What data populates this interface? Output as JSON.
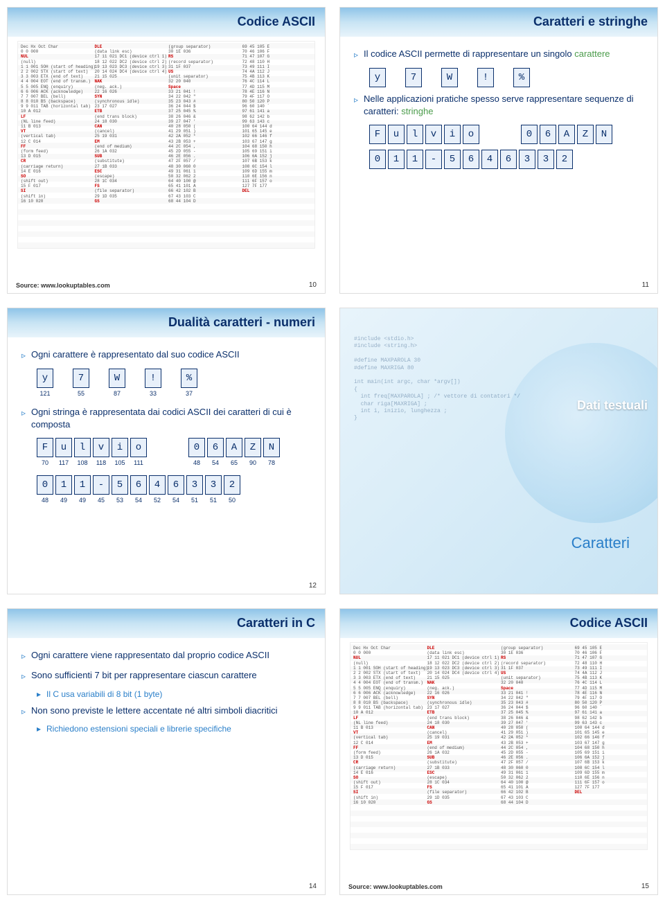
{
  "slides": {
    "s10": {
      "title": "Codice ASCII",
      "pagenum": "10",
      "source": "Source: www.lookuptables.com"
    },
    "s11": {
      "title": "Caratteri e stringhe",
      "pagenum": "11",
      "line1_pre": "Il codice ASCII permette di rappresentare un singolo ",
      "line1_green": "carattere",
      "row1": [
        "y",
        "7",
        "W",
        "!",
        "%"
      ],
      "line2_pre": "Nelle applicazioni pratiche spesso serve rappresentare sequenze di caratteri: ",
      "line2_green": "stringhe",
      "row2a": [
        "F",
        "u",
        "l",
        "v",
        "i",
        "o"
      ],
      "row2b": [
        "0",
        "6",
        "A",
        "Z",
        "N"
      ],
      "row3": [
        "0",
        "1",
        "1",
        "-",
        "5",
        "6",
        "4",
        "6",
        "3",
        "3",
        "2"
      ]
    },
    "s12": {
      "title": "Dualità caratteri - numeri",
      "pagenum": "12",
      "line1": "Ogni carattere è rappresentato dal suo codice ASCII",
      "row1": [
        {
          "c": "y",
          "n": "121"
        },
        {
          "c": "7",
          "n": "55"
        },
        {
          "c": "W",
          "n": "87"
        },
        {
          "c": "!",
          "n": "33"
        },
        {
          "c": "%",
          "n": "37"
        }
      ],
      "line2": "Ogni stringa è rappresentata dai codici ASCII dei caratteri di cui è composta",
      "row2a": [
        {
          "c": "F",
          "n": "70"
        },
        {
          "c": "u",
          "n": "117"
        },
        {
          "c": "l",
          "n": "108"
        },
        {
          "c": "v",
          "n": "118"
        },
        {
          "c": "i",
          "n": "105"
        },
        {
          "c": "o",
          "n": "111"
        }
      ],
      "row2b": [
        {
          "c": "0",
          "n": "48"
        },
        {
          "c": "6",
          "n": "54"
        },
        {
          "c": "A",
          "n": "65"
        },
        {
          "c": "Z",
          "n": "90"
        },
        {
          "c": "N",
          "n": "78"
        }
      ],
      "row3": [
        {
          "c": "0",
          "n": "48"
        },
        {
          "c": "1",
          "n": "49"
        },
        {
          "c": "1",
          "n": "49"
        },
        {
          "c": "-",
          "n": "45"
        },
        {
          "c": "5",
          "n": "53"
        },
        {
          "c": "6",
          "n": "54"
        },
        {
          "c": "4",
          "n": "52"
        },
        {
          "c": "6",
          "n": "54"
        },
        {
          "c": "3",
          "n": "51"
        },
        {
          "c": "3",
          "n": "51"
        },
        {
          "c": "2",
          "n": "50"
        }
      ]
    },
    "s13": {
      "title": "Dati testuali",
      "subtitle": "Caratteri"
    },
    "s14": {
      "title": "Caratteri in C",
      "pagenum": "14",
      "line1": "Ogni carattere viene rappresentato dal proprio codice ASCII",
      "line2": "Sono sufficienti 7 bit per rappresentare ciascun carattere",
      "sub1": "Il C usa variabili di 8 bit (1 byte)",
      "line3": "Non sono previste le lettere accentate né altri simboli diacritici",
      "sub2": "Richiedono estensioni speciali e librerie specifiche"
    },
    "s15": {
      "title": "Codice ASCII",
      "pagenum": "15",
      "source": "Source: www.lookuptables.com"
    }
  },
  "ascii_sample": [
    "Dec Hx Oct Char",
    "0  0 000 NUL (null)",
    "1  1 001 SOH (start of heading)",
    "2  2 002 STX (start of text)",
    "3  3 003 ETX (end of text)",
    "4  4 004 EOT (end of transm.)",
    "5  5 005 ENQ (enquiry)",
    "6  6 006 ACK (acknowledge)",
    "7  7 007 BEL (bell)",
    "8  8 010 BS  (backspace)",
    "9  9 011 TAB (horizontal tab)",
    "10 A 012 LF  (NL line feed)",
    "11 B 013 VT  (vertical tab)",
    "12 C 014 FF  (form feed)",
    "13 D 015 CR  (carriage return)",
    "14 E 016 SO  (shift out)",
    "15 F 017 SI  (shift in)",
    "16 10 020 DLE (data link esc)",
    "17 11 021 DC1 (device ctrl 1)",
    "18 12 022 DC2 (device ctrl 2)",
    "19 13 023 DC3 (device ctrl 3)",
    "20 14 024 DC4 (device ctrl 4)",
    "21 15 025 NAK (neg. ack.)",
    "22 16 026 SYN (synchronous idle)",
    "23 17 027 ETB (end trans block)",
    "24 18 030 CAN (cancel)",
    "25 19 031 EM  (end of medium)",
    "26 1A 032 SUB (substitute)",
    "27 1B 033 ESC (escape)",
    "28 1C 034 FS  (file separator)",
    "29 1D 035 GS  (group separator)",
    "30 1E 036 RS  (record separator)",
    "31 1F 037 US  (unit separator)",
    "32 20 040     Space",
    "33 21 041  !  ",
    "34 22 042  \"  ",
    "35 23 043  #  ",
    "36 24 044  $  ",
    "37 25 045  %  ",
    "38 26 046  &  ",
    "39 27 047  '  ",
    "40 28 050  (  ",
    "41 29 051  )  ",
    "42 2A 052  *  ",
    "43 2B 053  +  ",
    "44 2C 054  ,  ",
    "45 2D 055  -  ",
    "46 2E 056  .  ",
    "47 2F 057  /  ",
    "48 30 060  0  ",
    "49 31 061  1  ",
    "50 32 062  2  ",
    "64 40 100  @",
    "65 41 101  A",
    "66 42 102  B",
    "67 43 103  C",
    "68 44 104  D",
    "69 45 105  E",
    "70 46 106  F",
    "71 47 107  G",
    "72 48 110  H",
    "73 49 111  I",
    "74 4A 112  J",
    "75 4B 113  K",
    "76 4C 114  L",
    "77 4D 115  M",
    "78 4E 116  N",
    "79 4F 117  O",
    "80 50 120  P",
    "96 60 140  `",
    "97 61 141  a",
    "98 62 142  b",
    "99 63 143  c",
    "100 64 144 d",
    "101 65 145 e",
    "102 66 146 f",
    "103 67 147 g",
    "104 68 150 h",
    "105 69 151 i",
    "106 6A 152 j",
    "107 6B 153 k",
    "108 6C 154 l",
    "109 6D 155 m",
    "110 6E 156 n",
    "111 6F 157 o",
    "127 7F 177 DEL"
  ],
  "colors": {
    "title": "#0a2f6b",
    "accent": "#2a7fc9",
    "green": "#4a9b4a",
    "box_border": "#0a2f6b",
    "box_bg": "#e8f0fa"
  }
}
